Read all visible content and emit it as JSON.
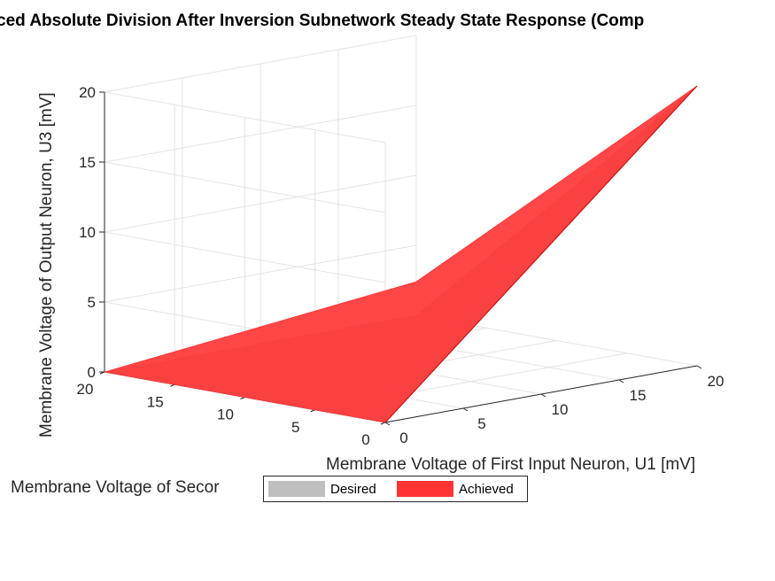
{
  "chart_data": {
    "type": "surface",
    "title": "ced Absolute Division After Inversion Subnetwork Steady State Response (Comp",
    "xlabel": "Membrane Voltage of First Input Neuron, U1 [mV]",
    "ylabel": "Membrane Voltage of Secor",
    "zlabel": "Membrane Voltage of Output Neuron, U3 [mV]",
    "xlim": [
      0,
      20
    ],
    "ylim": [
      0,
      20
    ],
    "zlim": [
      0,
      20
    ],
    "x_ticks": [
      "0",
      "5",
      "10",
      "15",
      "20"
    ],
    "y_ticks": [
      "0",
      "5",
      "10",
      "15",
      "20"
    ],
    "z_ticks": [
      "0",
      "5",
      "10",
      "15",
      "20"
    ],
    "grid": true,
    "legend_position": "bottom-center",
    "series": [
      {
        "name": "Desired",
        "color": "#bfbfbf",
        "description_points": [
          {
            "u1": 20,
            "u2": 0,
            "u3": 20
          },
          {
            "u1": 20,
            "u2": 20,
            "u3": 0
          },
          {
            "u1": 0,
            "u2": 20,
            "u3": 0
          },
          {
            "u1": 0,
            "u2": 0,
            "u3": 0
          }
        ]
      },
      {
        "name": "Achieved",
        "color": "#ff3333",
        "description_points": [
          {
            "u1": 20,
            "u2": 0,
            "u3": 20
          },
          {
            "u1": 20,
            "u2": 20,
            "u3": 2.4
          },
          {
            "u1": 0,
            "u2": 20,
            "u3": 0
          },
          {
            "u1": 0,
            "u2": 0,
            "u3": 0
          }
        ]
      }
    ]
  },
  "legend": {
    "items": [
      {
        "label": "Desired",
        "color": "#bfbfbf"
      },
      {
        "label": "Achieved",
        "color": "#ff3333"
      }
    ]
  }
}
